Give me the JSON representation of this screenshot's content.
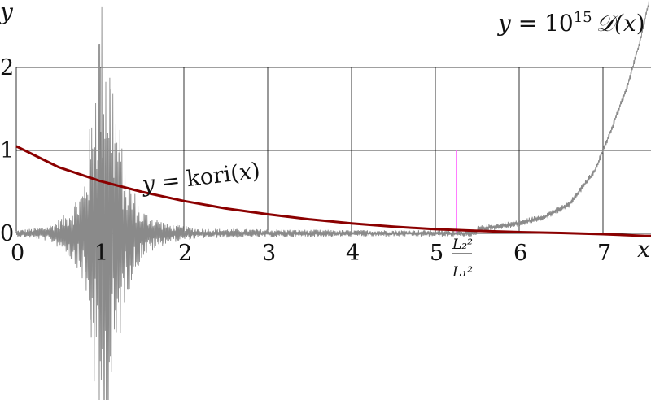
{
  "chart_data": {
    "type": "line",
    "xlabel": "x",
    "ylabel": "y",
    "x_ticks": [
      0,
      1,
      2,
      3,
      4,
      5,
      6,
      7
    ],
    "y_ticks": [
      0,
      1,
      2
    ],
    "xlim": [
      0,
      7.6
    ],
    "ylim": [
      -2,
      2.9
    ],
    "grid": true,
    "marker": {
      "x": 5.25,
      "label_top": "L₂²",
      "label_bottom": "L₁²",
      "color": "#ff66ff"
    },
    "series": [
      {
        "name": "y = kori(x)",
        "label_parts": [
          "y",
          " = kori(",
          "x",
          ")"
        ],
        "color": "#8b0000",
        "x": [
          0,
          0.5,
          1,
          1.5,
          2,
          2.5,
          3,
          3.5,
          4,
          4.5,
          5,
          5.5,
          6,
          6.5,
          7,
          7.5,
          7.6
        ],
        "y": [
          1.05,
          0.8,
          0.63,
          0.5,
          0.39,
          0.3,
          0.23,
          0.17,
          0.12,
          0.08,
          0.05,
          0.03,
          0.015,
          0.005,
          -0.01,
          -0.03,
          -0.03
        ]
      },
      {
        "name": "y = 10^15 D(x)",
        "label_parts": [
          "y",
          " = 10",
          "15",
          "𝒟(",
          "x",
          ")"
        ],
        "color": "#8a8a8a",
        "style": "noisy oscillation, large near x≈1",
        "envelope_x": [
          0,
          0.2,
          0.4,
          0.6,
          0.8,
          0.9,
          1.0,
          1.1,
          1.2,
          1.3,
          1.5,
          1.8,
          2.2,
          3,
          4,
          5,
          5.5
        ],
        "envelope_amp": [
          0.04,
          0.06,
          0.1,
          0.25,
          0.6,
          1.5,
          3.0,
          2.5,
          1.6,
          0.8,
          0.3,
          0.12,
          0.06,
          0.05,
          0.04,
          0.04,
          0.04
        ],
        "trend_x": [
          5.5,
          6.0,
          6.3,
          6.6,
          6.9,
          7.1,
          7.3,
          7.45,
          7.55
        ],
        "trend_y": [
          0.05,
          0.12,
          0.2,
          0.35,
          0.75,
          1.25,
          1.8,
          2.35,
          2.8
        ]
      }
    ]
  }
}
